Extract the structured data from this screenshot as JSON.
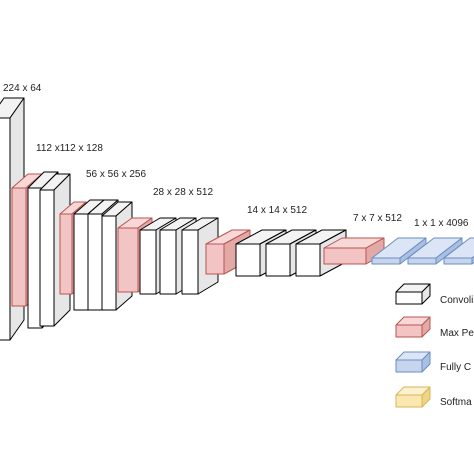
{
  "diagram": {
    "stage_labels": [
      {
        "id": "conv1",
        "text": "224 x 64"
      },
      {
        "id": "conv2",
        "text": "112 x112 x 128"
      },
      {
        "id": "conv3",
        "text": "56 x 56 x 256"
      },
      {
        "id": "conv4",
        "text": "28 x 28 x 512"
      },
      {
        "id": "conv5",
        "text": "14 x 14 x 512"
      },
      {
        "id": "pool5",
        "text": "7 x 7 x 512"
      },
      {
        "id": "fc",
        "text": "1 x 1 x 4096"
      }
    ],
    "legend": [
      {
        "kind": "convolution",
        "label": "Convoli"
      },
      {
        "kind": "max-pooling",
        "label": "Max Pe"
      },
      {
        "kind": "fully-connected",
        "label": "Fully C"
      },
      {
        "kind": "softmax",
        "label": "Softma"
      }
    ],
    "colors": {
      "conv_fill": "#ffffff",
      "conv_stroke": "#000000",
      "pool_fill": "#f2c4c4",
      "pool_stroke": "#b85450",
      "fc_fill": "#c6d4ee",
      "fc_stroke": "#6c8ebf",
      "softmax_fill": "#fbe8b0",
      "softmax_stroke": "#d6b656"
    }
  }
}
